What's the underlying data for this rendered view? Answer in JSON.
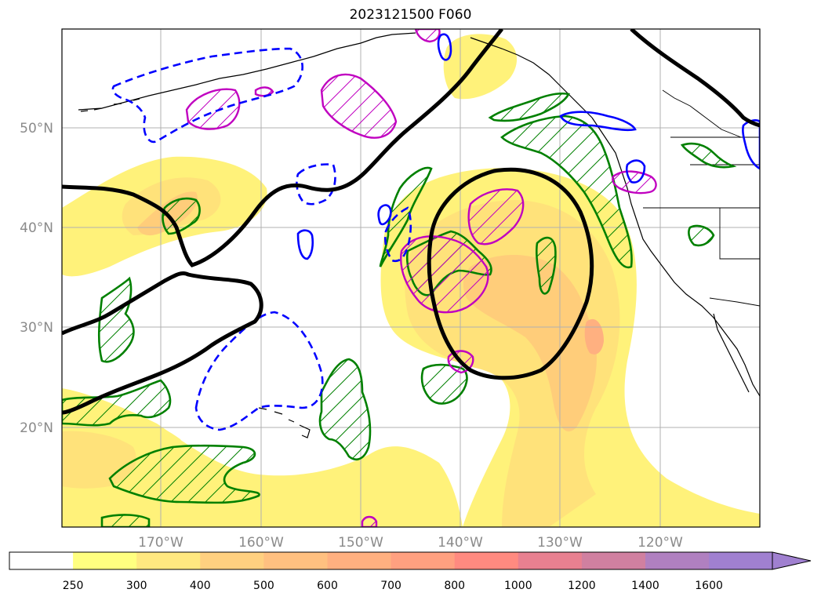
{
  "title": "2023121500 F060",
  "map": {
    "lat_labels": [
      "50°N",
      "40°N",
      "30°N",
      "20°N"
    ],
    "lon_labels": [
      "170°W",
      "160°W",
      "150°W",
      "140°W",
      "130°W",
      "120°W"
    ],
    "gridlines": true,
    "colors": {
      "thick_contour": "#000000",
      "dashed_contour": "#0000ff",
      "solid_blue_contour": "#0000ff",
      "green_hatched": "#008000",
      "magenta_hatched": "#c000c0",
      "coastline": "#000000"
    }
  },
  "colorbar": {
    "labels": [
      "250",
      "300",
      "400",
      "500",
      "600",
      "700",
      "800",
      "1000",
      "1200",
      "1400",
      "1600"
    ],
    "colors": [
      "#ffffff",
      "#ffff80",
      "#ffe880",
      "#ffd080",
      "#ffc080",
      "#ffb080",
      "#ffa080",
      "#ff8a80",
      "#e88090",
      "#d080a0",
      "#b080c0",
      "#a080d0"
    ],
    "extend": "max"
  }
}
